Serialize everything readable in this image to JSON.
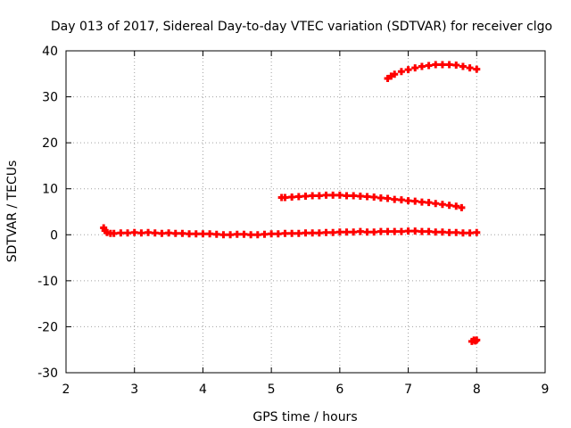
{
  "chart_data": {
    "type": "scatter",
    "title": "Day 013 of 2017, Sidereal Day-to-day VTEC variation (SDTVAR) for receiver clgo",
    "xlabel": "GPS time / hours",
    "ylabel": "SDTVAR / TECUs",
    "xlim": [
      2,
      9
    ],
    "ylim": [
      -30,
      40
    ],
    "x_ticks": [
      "2",
      "3",
      "4",
      "5",
      "6",
      "7",
      "8",
      "9"
    ],
    "y_ticks": [
      "40",
      "30",
      "20",
      "10",
      "0",
      "-10",
      "-20",
      "-30"
    ],
    "grid": true,
    "legend": "none",
    "marker": "plus",
    "color": "#ff0000",
    "series": [
      {
        "x": [
          2.55,
          2.57,
          2.6,
          2.65,
          2.7,
          2.8,
          2.9,
          3.0,
          3.1,
          3.2,
          3.3,
          3.4,
          3.5,
          3.6,
          3.7,
          3.8,
          3.9,
          4.0,
          4.1,
          4.2,
          4.3,
          4.4,
          4.5,
          4.6,
          4.7,
          4.8,
          4.9,
          5.0,
          5.1,
          5.2,
          5.3,
          5.4,
          5.5,
          5.6,
          5.7,
          5.8,
          5.9,
          6.0,
          6.1,
          6.2,
          6.3,
          6.4,
          6.5,
          6.6,
          6.7,
          6.8,
          6.9,
          7.0,
          7.1,
          7.2,
          7.3,
          7.4,
          7.5,
          7.6,
          7.7,
          7.8,
          7.9,
          8.0
        ],
        "y": [
          1.5,
          0.9,
          0.5,
          0.3,
          0.3,
          0.4,
          0.4,
          0.5,
          0.4,
          0.5,
          0.4,
          0.3,
          0.4,
          0.3,
          0.3,
          0.2,
          0.2,
          0.2,
          0.2,
          0.1,
          0.0,
          0.0,
          0.1,
          0.1,
          0.0,
          0.0,
          0.1,
          0.2,
          0.2,
          0.3,
          0.3,
          0.3,
          0.4,
          0.4,
          0.4,
          0.5,
          0.5,
          0.6,
          0.6,
          0.6,
          0.7,
          0.6,
          0.6,
          0.7,
          0.7,
          0.7,
          0.7,
          0.8,
          0.8,
          0.7,
          0.7,
          0.6,
          0.6,
          0.5,
          0.5,
          0.4,
          0.4,
          0.5
        ]
      },
      {
        "x": [
          5.15,
          5.2,
          5.3,
          5.4,
          5.5,
          5.6,
          5.7,
          5.8,
          5.9,
          6.0,
          6.1,
          6.2,
          6.3,
          6.4,
          6.5,
          6.6,
          6.7,
          6.8,
          6.9,
          7.0,
          7.1,
          7.2,
          7.3,
          7.4,
          7.5,
          7.6,
          7.7,
          7.78
        ],
        "y": [
          8.1,
          8.1,
          8.2,
          8.3,
          8.4,
          8.5,
          8.5,
          8.6,
          8.6,
          8.6,
          8.5,
          8.5,
          8.4,
          8.3,
          8.2,
          8.0,
          7.9,
          7.7,
          7.6,
          7.4,
          7.3,
          7.1,
          7.0,
          6.8,
          6.6,
          6.4,
          6.2,
          5.9
        ]
      },
      {
        "x": [
          6.7,
          6.75,
          6.8,
          6.9,
          7.0,
          7.1,
          7.2,
          7.3,
          7.4,
          7.5,
          7.6,
          7.7,
          7.8,
          7.9,
          8.0
        ],
        "y": [
          34.0,
          34.5,
          34.9,
          35.5,
          35.9,
          36.3,
          36.6,
          36.8,
          37.0,
          37.0,
          37.0,
          36.9,
          36.6,
          36.3,
          36.0
        ]
      },
      {
        "x": [
          7.93,
          7.96,
          7.98,
          8.0
        ],
        "y": [
          -23.2,
          -22.9,
          -23.1,
          -22.9
        ]
      }
    ]
  }
}
